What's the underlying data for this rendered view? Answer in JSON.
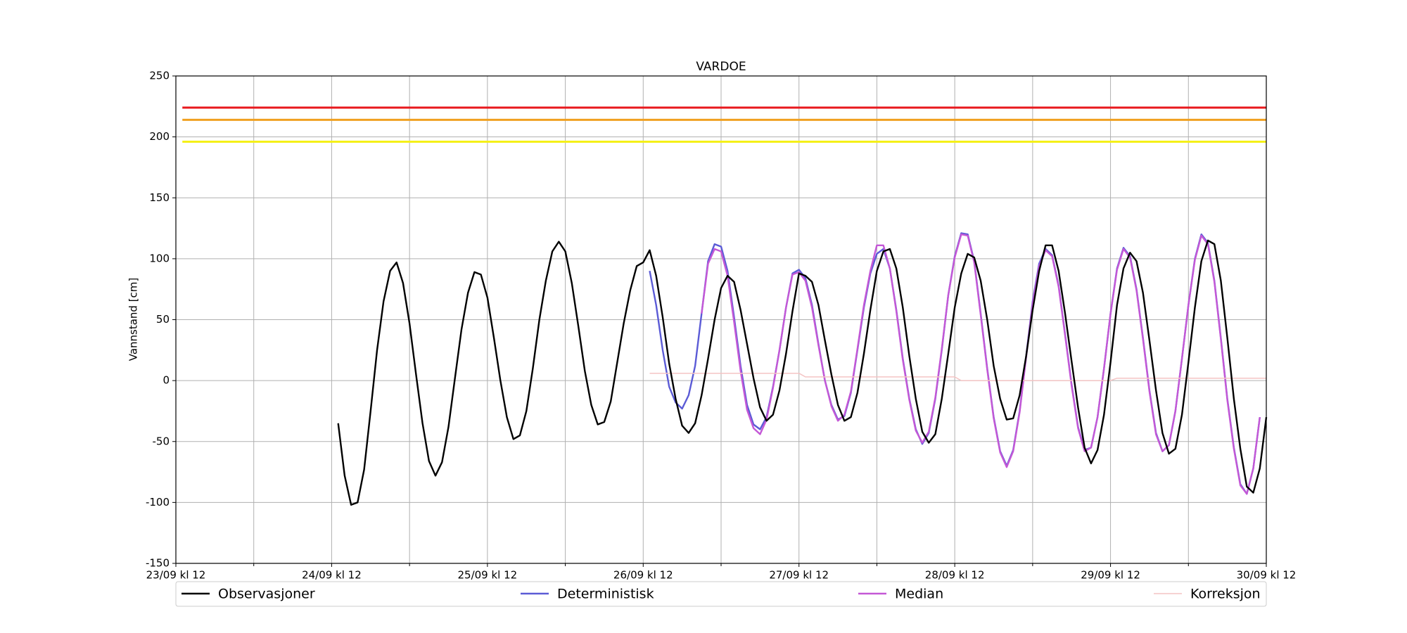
{
  "chart_data": {
    "type": "line",
    "title": "VARDOE",
    "ylabel": "Vannstand [cm]",
    "xlim": [
      0,
      168
    ],
    "ylim": [
      -150,
      250
    ],
    "xticks": [
      {
        "value": 0,
        "label": "23/09 kl 12"
      },
      {
        "value": 24,
        "label": "24/09 kl 12"
      },
      {
        "value": 48,
        "label": "25/09 kl 12"
      },
      {
        "value": 72,
        "label": "26/09 kl 12"
      },
      {
        "value": 96,
        "label": "27/09 kl 12"
      },
      {
        "value": 120,
        "label": "28/09 kl 12"
      },
      {
        "value": 144,
        "label": "29/09 kl 12"
      },
      {
        "value": 168,
        "label": "30/09 kl 12"
      }
    ],
    "xminor": [
      12,
      36,
      60,
      84,
      108,
      132,
      156
    ],
    "yticks": [
      -150,
      -100,
      -50,
      0,
      50,
      100,
      150,
      200,
      250
    ],
    "grid": true,
    "legend": "below",
    "thresholds": [
      {
        "value": 224,
        "color": "#e8191d"
      },
      {
        "value": 214,
        "color": "#f0a020"
      },
      {
        "value": 196,
        "color": "#f5f019"
      }
    ],
    "threshold_xlim": [
      1,
      168
    ],
    "series": [
      {
        "name": "Observasjoner",
        "color": "#000000",
        "x": [
          25,
          26,
          27,
          28,
          29,
          30,
          31,
          32,
          33,
          34,
          35,
          36,
          37,
          38,
          39,
          40,
          41,
          42,
          43,
          44,
          45,
          46,
          47,
          48,
          49,
          50,
          51,
          52,
          53,
          54,
          55,
          56,
          57,
          58,
          59,
          60,
          61,
          62,
          63,
          64,
          65,
          66,
          67,
          68,
          69,
          70,
          71,
          72,
          73,
          74,
          75,
          76,
          77,
          78,
          79,
          80,
          81,
          82,
          83,
          84,
          85,
          86,
          87,
          88,
          89,
          90,
          91,
          92,
          93,
          94,
          95,
          96,
          97,
          98,
          99,
          100,
          101,
          102,
          103,
          104,
          105,
          106,
          107,
          108,
          109,
          110,
          111,
          112,
          113,
          114,
          115,
          116,
          117,
          118,
          119,
          120,
          121,
          122,
          123,
          124,
          125,
          126,
          127,
          128,
          129,
          130,
          131,
          132,
          133,
          134,
          135,
          136,
          137,
          138,
          139,
          140,
          141,
          142,
          143,
          144,
          145,
          146,
          147,
          148,
          149,
          150,
          151,
          152,
          153,
          154,
          155,
          156,
          157,
          158,
          159,
          160,
          161,
          162,
          163,
          164,
          165,
          166,
          167,
          168
        ],
        "values": [
          -35,
          -78,
          -102,
          -100,
          -73,
          -25,
          25,
          65,
          90,
          97,
          80,
          47,
          5,
          -35,
          -66,
          -78,
          -67,
          -38,
          2,
          42,
          72,
          89,
          87,
          68,
          35,
          0,
          -30,
          -48,
          -45,
          -25,
          10,
          50,
          82,
          106,
          114,
          106,
          80,
          45,
          8,
          -20,
          -36,
          -34,
          -17,
          15,
          47,
          74,
          94,
          97,
          107,
          86,
          52,
          14,
          -15,
          -37,
          -43,
          -35,
          -12,
          18,
          50,
          76,
          86,
          81,
          58,
          30,
          2,
          -22,
          -33,
          -28,
          -8,
          22,
          57,
          88,
          86,
          81,
          62,
          33,
          5,
          -20,
          -33,
          -30,
          -10,
          22,
          58,
          90,
          106,
          108,
          92,
          60,
          20,
          -15,
          -42,
          -51,
          -44,
          -15,
          22,
          60,
          88,
          104,
          101,
          82,
          50,
          12,
          -15,
          -32,
          -31,
          -12,
          20,
          58,
          90,
          111,
          111,
          90,
          55,
          16,
          -22,
          -55,
          -68,
          -57,
          -28,
          15,
          62,
          92,
          105,
          98,
          72,
          33,
          -8,
          -43,
          -60,
          -56,
          -28,
          15,
          60,
          98,
          115,
          112,
          82,
          35,
          -15,
          -56,
          -87,
          -92,
          -72,
          -30
        ]
      },
      {
        "name": "Deterministisk",
        "color": "#5b5bd6",
        "x": [
          73,
          74,
          75,
          76,
          77,
          78,
          79,
          80,
          81,
          82,
          83,
          84,
          85,
          86,
          87,
          88,
          89,
          90,
          91,
          92,
          93,
          94,
          95,
          96,
          97,
          98,
          99,
          100,
          101,
          102,
          103,
          104,
          105,
          106,
          107,
          108,
          109,
          110,
          111,
          112,
          113,
          114,
          115,
          116,
          117,
          118,
          119,
          120,
          121,
          122,
          123,
          124,
          125,
          126,
          127,
          128,
          129,
          130,
          131,
          132,
          133,
          134,
          135,
          136,
          137,
          138,
          139,
          140,
          141,
          142,
          143,
          144,
          145,
          146,
          147,
          148,
          149,
          150,
          151,
          152,
          153,
          154,
          155,
          156,
          157,
          158,
          159,
          160,
          161,
          162,
          163,
          164,
          165,
          166,
          167
        ],
        "values": [
          90,
          62,
          25,
          -5,
          -18,
          -23,
          -12,
          12,
          55,
          98,
          112,
          110,
          90,
          52,
          12,
          -20,
          -36,
          -40,
          -30,
          -5,
          25,
          60,
          88,
          91,
          84,
          62,
          30,
          0,
          -20,
          -32,
          -29,
          -10,
          25,
          60,
          88,
          104,
          108,
          92,
          58,
          18,
          -15,
          -40,
          -52,
          -43,
          -15,
          25,
          70,
          102,
          121,
          120,
          98,
          55,
          10,
          -30,
          -58,
          -70,
          -57,
          -25,
          20,
          65,
          96,
          108,
          103,
          78,
          38,
          -3,
          -38,
          -57,
          -55,
          -30,
          10,
          55,
          92,
          109,
          102,
          75,
          35,
          -8,
          -43,
          -58,
          -53,
          -25,
          18,
          62,
          100,
          120,
          113,
          82,
          35,
          -15,
          -55,
          -85,
          -93,
          -72,
          -30
        ]
      },
      {
        "name": "Median",
        "color": "#c458d6",
        "x": [
          81,
          82,
          83,
          84,
          85,
          86,
          87,
          88,
          89,
          90,
          91,
          92,
          93,
          94,
          95,
          96,
          97,
          98,
          99,
          100,
          101,
          102,
          103,
          104,
          105,
          106,
          107,
          108,
          109,
          110,
          111,
          112,
          113,
          114,
          115,
          116,
          117,
          118,
          119,
          120,
          121,
          122,
          123,
          124,
          125,
          126,
          127,
          128,
          129,
          130,
          131,
          132,
          133,
          134,
          135,
          136,
          137,
          138,
          139,
          140,
          141,
          142,
          143,
          144,
          145,
          146,
          147,
          148,
          149,
          150,
          151,
          152,
          153,
          154,
          155,
          156,
          157,
          158,
          159,
          160,
          161,
          162,
          163,
          164,
          165,
          166,
          167
        ],
        "values": [
          55,
          96,
          108,
          106,
          86,
          48,
          8,
          -24,
          -39,
          -44,
          -32,
          -6,
          25,
          60,
          87,
          89,
          82,
          60,
          29,
          0,
          -21,
          -33,
          -28,
          -9,
          26,
          62,
          90,
          111,
          111,
          92,
          57,
          17,
          -16,
          -41,
          -51,
          -42,
          -14,
          26,
          70,
          101,
          120,
          119,
          97,
          54,
          9,
          -31,
          -59,
          -71,
          -58,
          -26,
          19,
          63,
          94,
          107,
          102,
          77,
          37,
          -4,
          -39,
          -58,
          -55,
          -30,
          10,
          55,
          91,
          108,
          101,
          74,
          34,
          -9,
          -44,
          -58,
          -53,
          -25,
          18,
          62,
          99,
          119,
          112,
          81,
          34,
          -16,
          -56,
          -86,
          -93,
          -72,
          -30
        ]
      },
      {
        "name": "Korreksjon",
        "color": "#f4c4c4",
        "x": [
          73,
          96,
          97,
          120,
          121,
          144,
          145,
          168
        ],
        "values": [
          6,
          6,
          3,
          3,
          0,
          0,
          2,
          2
        ]
      }
    ]
  }
}
